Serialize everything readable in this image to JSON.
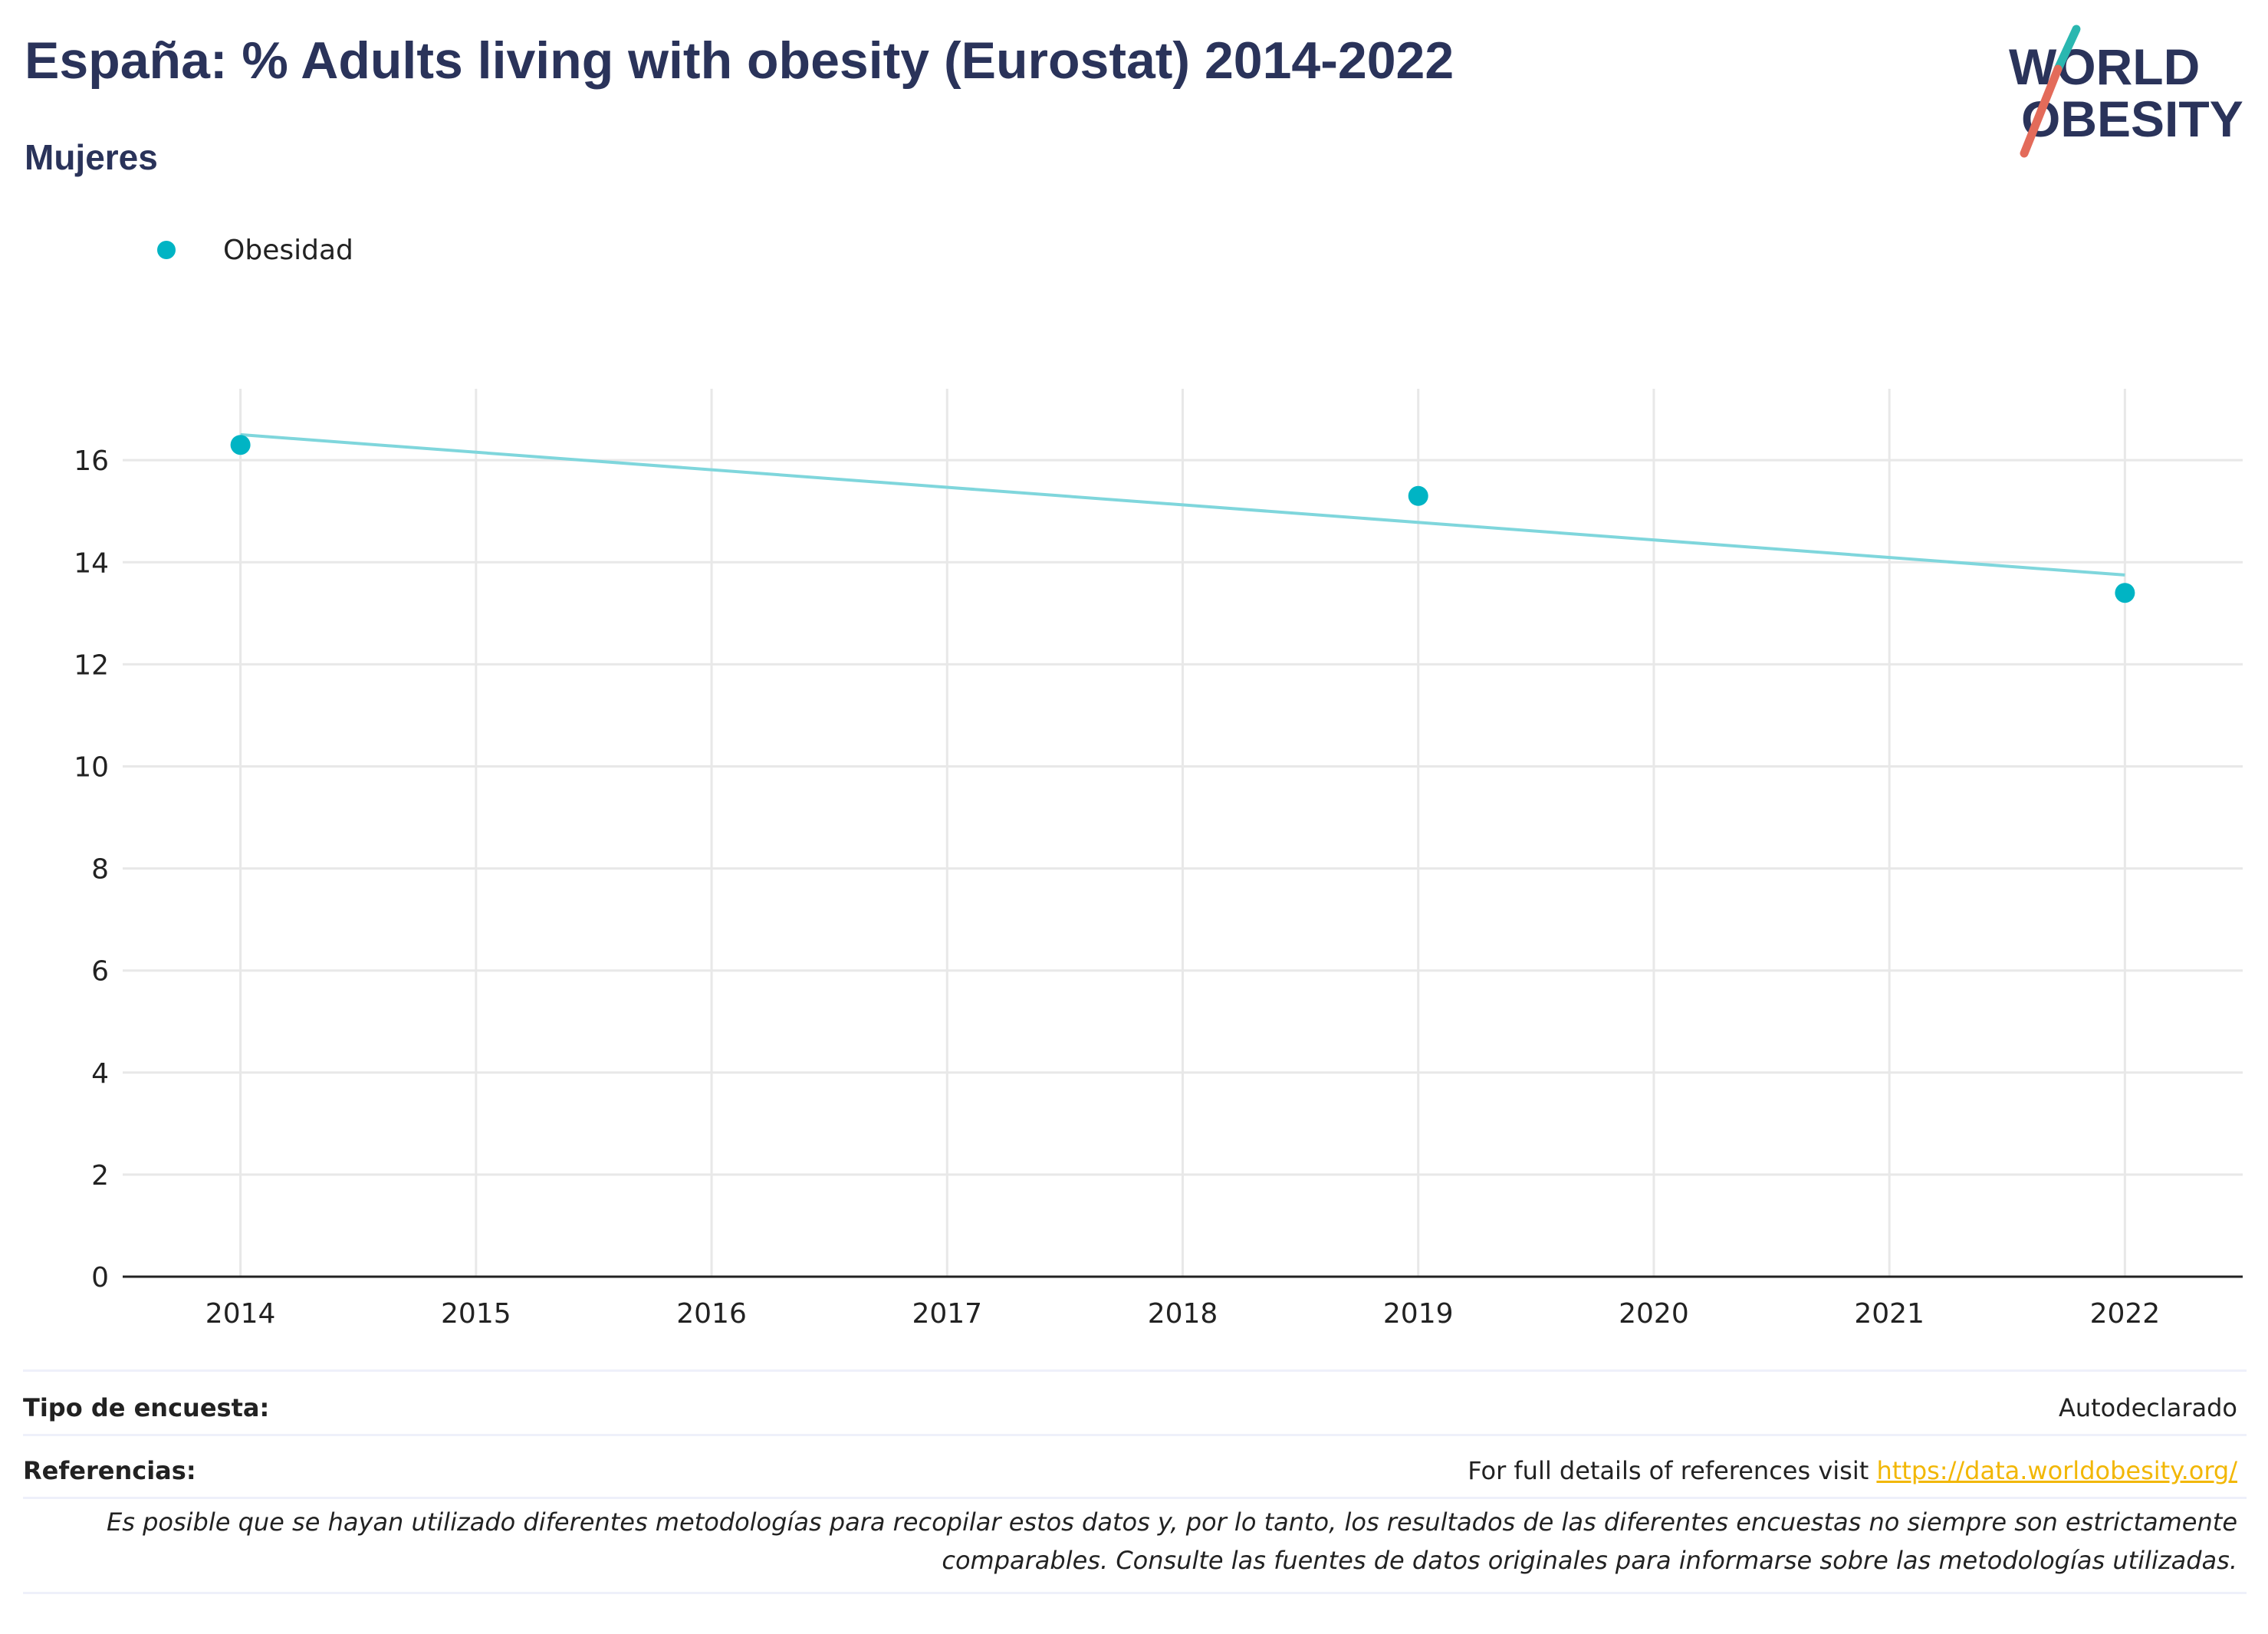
{
  "header": {
    "title": "España: % Adults living with obesity (Eurostat) 2014-2022",
    "subtitle": "Mujeres"
  },
  "logo": {
    "line1": "WORLD",
    "line2": "OBESITY"
  },
  "legend": {
    "label": "Obesidad",
    "marker": "circle"
  },
  "chart_data": {
    "type": "scatter",
    "title": "España: % Adults living with obesity (Eurostat) 2014-2022",
    "subtitle": "Mujeres",
    "xlabel": "",
    "ylabel": "",
    "x_ticks": [
      "2014",
      "2015",
      "2016",
      "2017",
      "2018",
      "2019",
      "2020",
      "2021",
      "2022"
    ],
    "y_ticks": [
      0,
      2,
      4,
      6,
      8,
      10,
      12,
      14,
      16
    ],
    "xlim": [
      2013.5,
      2022.5
    ],
    "ylim": [
      0,
      17.4
    ],
    "grid": true,
    "legend_position": "top-left",
    "series": [
      {
        "name": "Obesidad",
        "x": [
          2014,
          2019,
          2022
        ],
        "y": [
          16.3,
          15.3,
          13.4
        ]
      }
    ],
    "trendline": {
      "x": [
        2014,
        2022
      ],
      "y": [
        16.5,
        13.75
      ]
    },
    "colors": {
      "points": "#00b4c4",
      "trendline": "#7fd6dc",
      "grid": "#e8e8e8",
      "axis": "#222222"
    }
  },
  "footer": {
    "survey_label": "Tipo de encuesta:",
    "survey_value": "Autodeclarado",
    "references_label": "Referencias:",
    "references_text": "For full details of references visit ",
    "references_link": "https://data.worldobesity.org/",
    "note_line1": "Es posible que se hayan utilizado diferentes metodologías para recopilar estos datos y, por lo tanto, los resultados de las diferentes encuestas no siempre son estrictamente",
    "note_line2": "comparables. Consulte las fuentes de datos originales para informarse sobre las metodologías utilizadas."
  }
}
